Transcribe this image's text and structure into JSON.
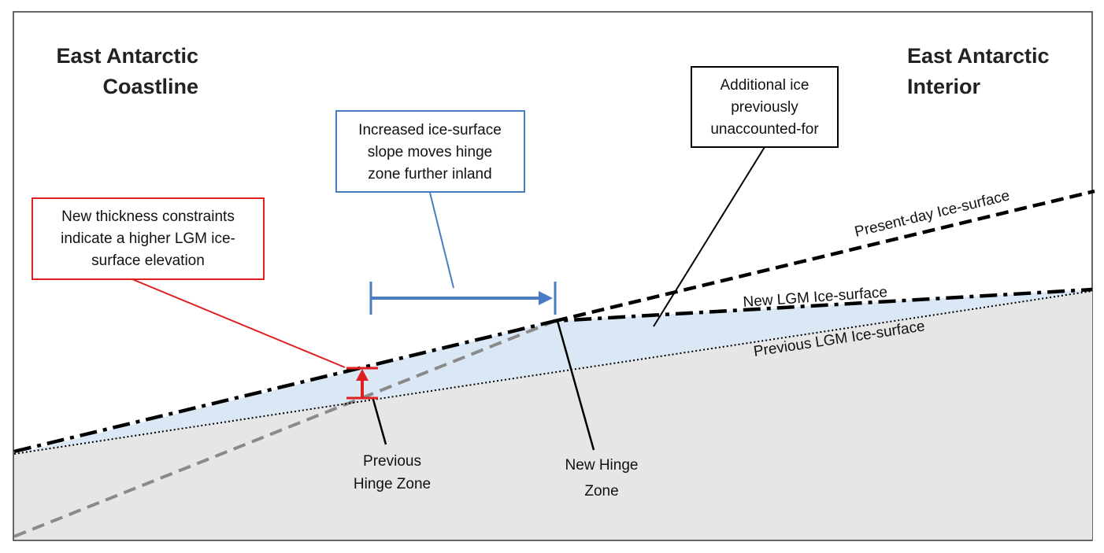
{
  "headings": {
    "left_line1": "East Antarctic",
    "left_line2": "Coastline",
    "right_line1": "East Antarctic",
    "right_line2": "Interior"
  },
  "callouts": {
    "blue": {
      "lines": [
        "Increased ice-surface",
        "slope moves hinge",
        "zone further inland"
      ],
      "color": "#4a7cc4"
    },
    "red": {
      "lines": [
        "New thickness constraints",
        "indicate a higher LGM ice-",
        "surface elevation"
      ],
      "color": "#e02020"
    },
    "black": {
      "lines": [
        "Additional ice",
        "previously",
        "unaccounted-for"
      ],
      "color": "#000000"
    }
  },
  "surface_labels": {
    "present_day": "Present-day Ice-surface",
    "new_lgm": "New LGM Ice-surface",
    "previous_lgm": "Previous LGM Ice-surface"
  },
  "hinge_labels": {
    "previous": [
      "Previous",
      "Hinge Zone"
    ],
    "new": [
      "New Hinge",
      "Zone"
    ]
  },
  "colors": {
    "bedrock_fill": "#e6e6e6",
    "ice_fill": "#d6e6f5",
    "gray_line": "#8a8a8a"
  }
}
